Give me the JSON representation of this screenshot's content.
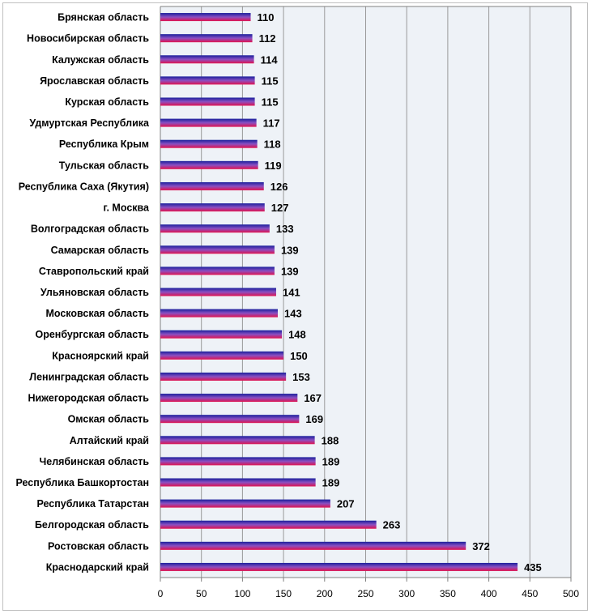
{
  "chart_data": {
    "type": "bar",
    "orientation": "horizontal",
    "title": "",
    "xlabel": "",
    "ylabel": "",
    "categories": [
      "Брянская область",
      "Новосибирская область",
      "Калужская область",
      "Ярославская область",
      "Курская область",
      "Удмуртская Республика",
      "Республика Крым",
      "Тульская область",
      "Республика Саха (Якутия)",
      "г. Москва",
      "Волгоградская область",
      "Самарская область",
      "Ставропольский край",
      "Ульяновская область",
      "Московская область",
      "Оренбургская область",
      "Красноярский край",
      "Ленинградская область",
      "Нижегородская область",
      "Омская область",
      "Алтайский край",
      "Челябинская область",
      "Республика Башкортостан",
      "Республика Татарстан",
      "Белгородская область",
      "Ростовская область",
      "Краснодарский край"
    ],
    "values": [
      110,
      112,
      114,
      115,
      115,
      117,
      118,
      119,
      126,
      127,
      133,
      139,
      139,
      141,
      143,
      148,
      150,
      153,
      167,
      169,
      188,
      189,
      189,
      207,
      263,
      372,
      435
    ],
    "xlim": [
      0,
      500
    ],
    "x_ticks": [
      0,
      50,
      100,
      150,
      200,
      250,
      300,
      350,
      400,
      450,
      500
    ],
    "grid": "vertical",
    "legend": "none",
    "data_labels": true
  },
  "colors": {
    "bar_top": "#1a1f9c",
    "bar_mid": "#8a4fc2",
    "bar_bottom": "#e0124f",
    "plot_bg": "#eef2f7",
    "grid": "#9a9a9a"
  }
}
